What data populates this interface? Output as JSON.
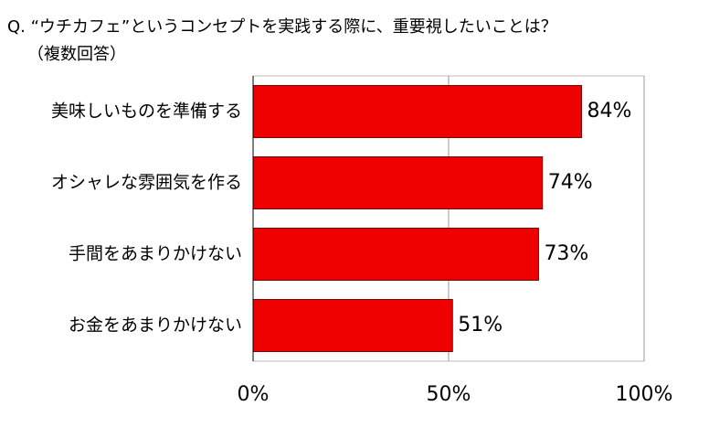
{
  "chart_data": {
    "type": "bar",
    "orientation": "horizontal",
    "title": "Q. “ウチカフェ”というコンセプトを実践する際に、重要視したいことは？",
    "subtitle": "（複数回答）",
    "categories": [
      "美味しいものを準備する",
      "オシャレな雰囲気を作る",
      "手間をあまりかけない",
      "お金をあまりかけない"
    ],
    "values": [
      84,
      74,
      73,
      51
    ],
    "value_labels": [
      "84%",
      "74%",
      "73%",
      "51%"
    ],
    "color": "#ee0000",
    "xlim": [
      0,
      100
    ],
    "xticks": [
      {
        "value": 0,
        "label": "0%"
      },
      {
        "value": 50,
        "label": "50%"
      },
      {
        "value": 100,
        "label": "100%"
      }
    ],
    "grid": true
  }
}
